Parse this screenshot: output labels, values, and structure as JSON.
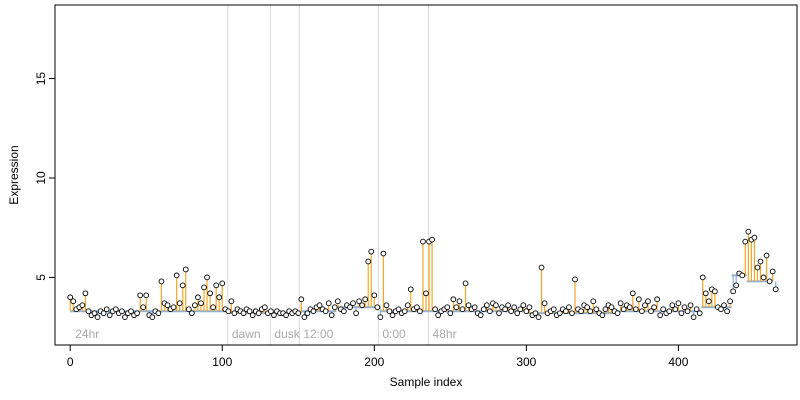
{
  "chart_data": {
    "type": "scatter",
    "title": "",
    "xlabel": "Sample index",
    "ylabel": "Expression",
    "xlim": [
      -10,
      478
    ],
    "ylim": [
      1.6,
      18.7
    ],
    "x_ticks": [
      0,
      100,
      200,
      300,
      400
    ],
    "y_ticks": [
      5,
      10,
      15
    ],
    "grid": false,
    "colors": {
      "point_stroke": "#000000",
      "point_fill": "#ffffff",
      "up_segment": "#f5a623",
      "down_segment": "#8fb0d9",
      "region_line": "#d9d9d9"
    },
    "regions": [
      {
        "label": "24hr",
        "x": 2
      },
      {
        "label": "dawn",
        "x": 105
      },
      {
        "label": "dusk",
        "x": 133
      },
      {
        "label": "12:00",
        "x": 152
      },
      {
        "label": "0:00",
        "x": 204
      },
      {
        "label": "48hr",
        "x": 237
      }
    ],
    "baseline_segments": [
      [
        0,
        60,
        3.3
      ],
      [
        60,
        105,
        3.3
      ],
      [
        105,
        133,
        3.2
      ],
      [
        133,
        152,
        3.2
      ],
      [
        152,
        175,
        3.3
      ],
      [
        175,
        204,
        3.5
      ],
      [
        204,
        237,
        3.3
      ],
      [
        237,
        300,
        3.3
      ],
      [
        300,
        360,
        3.2
      ],
      [
        360,
        415,
        3.3
      ],
      [
        415,
        435,
        3.5
      ],
      [
        435,
        445,
        5.1
      ],
      [
        445,
        460,
        4.8
      ]
    ],
    "series": [
      {
        "values": [
          [
            0,
            4.0
          ],
          [
            2,
            3.8
          ],
          [
            4,
            3.4
          ],
          [
            6,
            3.5
          ],
          [
            8,
            3.6
          ],
          [
            10,
            4.2
          ],
          [
            12,
            3.3
          ],
          [
            14,
            3.1
          ],
          [
            16,
            3.2
          ],
          [
            18,
            3.0
          ],
          [
            20,
            3.3
          ],
          [
            22,
            3.2
          ],
          [
            24,
            3.4
          ],
          [
            26,
            3.1
          ],
          [
            28,
            3.3
          ],
          [
            30,
            3.4
          ],
          [
            32,
            3.2
          ],
          [
            34,
            3.3
          ],
          [
            36,
            3.0
          ],
          [
            38,
            3.2
          ],
          [
            40,
            3.3
          ],
          [
            42,
            3.1
          ],
          [
            44,
            3.2
          ],
          [
            46,
            4.1
          ],
          [
            48,
            3.5
          ],
          [
            50,
            4.1
          ],
          [
            52,
            3.1
          ],
          [
            54,
            3.0
          ],
          [
            56,
            3.3
          ],
          [
            58,
            3.2
          ],
          [
            60,
            4.8
          ],
          [
            62,
            3.7
          ],
          [
            64,
            3.6
          ],
          [
            66,
            3.4
          ],
          [
            68,
            3.5
          ],
          [
            70,
            5.1
          ],
          [
            72,
            3.7
          ],
          [
            74,
            4.6
          ],
          [
            76,
            5.4
          ],
          [
            78,
            3.4
          ],
          [
            80,
            3.2
          ],
          [
            82,
            3.6
          ],
          [
            84,
            4.0
          ],
          [
            86,
            3.7
          ],
          [
            88,
            4.5
          ],
          [
            90,
            5.0
          ],
          [
            92,
            4.2
          ],
          [
            94,
            3.5
          ],
          [
            96,
            4.6
          ],
          [
            98,
            4.0
          ],
          [
            100,
            4.7
          ],
          [
            102,
            3.4
          ],
          [
            104,
            3.3
          ],
          [
            106,
            3.8
          ],
          [
            108,
            3.2
          ],
          [
            110,
            3.4
          ],
          [
            112,
            3.3
          ],
          [
            114,
            3.2
          ],
          [
            116,
            3.4
          ],
          [
            118,
            3.3
          ],
          [
            120,
            3.1
          ],
          [
            122,
            3.3
          ],
          [
            124,
            3.2
          ],
          [
            126,
            3.4
          ],
          [
            128,
            3.5
          ],
          [
            130,
            3.2
          ],
          [
            132,
            3.3
          ],
          [
            134,
            3.1
          ],
          [
            136,
            3.3
          ],
          [
            138,
            3.2
          ],
          [
            140,
            3.2
          ],
          [
            142,
            3.1
          ],
          [
            144,
            3.3
          ],
          [
            146,
            3.2
          ],
          [
            148,
            3.3
          ],
          [
            150,
            3.2
          ],
          [
            152,
            3.9
          ],
          [
            154,
            3.0
          ],
          [
            156,
            3.2
          ],
          [
            158,
            3.4
          ],
          [
            160,
            3.3
          ],
          [
            162,
            3.5
          ],
          [
            164,
            3.6
          ],
          [
            166,
            3.4
          ],
          [
            168,
            3.3
          ],
          [
            170,
            3.7
          ],
          [
            172,
            3.1
          ],
          [
            174,
            3.5
          ],
          [
            176,
            3.8
          ],
          [
            178,
            3.4
          ],
          [
            180,
            3.3
          ],
          [
            182,
            3.6
          ],
          [
            184,
            3.5
          ],
          [
            186,
            3.7
          ],
          [
            188,
            3.2
          ],
          [
            190,
            3.8
          ],
          [
            192,
            3.6
          ],
          [
            194,
            3.9
          ],
          [
            196,
            5.8
          ],
          [
            198,
            6.3
          ],
          [
            200,
            4.1
          ],
          [
            202,
            3.5
          ],
          [
            204,
            3.0
          ],
          [
            206,
            6.2
          ],
          [
            208,
            3.6
          ],
          [
            210,
            3.3
          ],
          [
            212,
            3.1
          ],
          [
            214,
            3.3
          ],
          [
            216,
            3.4
          ],
          [
            218,
            3.2
          ],
          [
            220,
            3.3
          ],
          [
            222,
            3.6
          ],
          [
            224,
            4.4
          ],
          [
            226,
            3.4
          ],
          [
            228,
            3.5
          ],
          [
            230,
            3.3
          ],
          [
            232,
            6.8
          ],
          [
            234,
            4.2
          ],
          [
            236,
            6.8
          ],
          [
            238,
            6.9
          ],
          [
            240,
            3.4
          ],
          [
            242,
            3.1
          ],
          [
            244,
            3.3
          ],
          [
            246,
            3.4
          ],
          [
            248,
            3.5
          ],
          [
            250,
            3.2
          ],
          [
            252,
            3.9
          ],
          [
            254,
            3.5
          ],
          [
            256,
            3.8
          ],
          [
            258,
            3.4
          ],
          [
            260,
            4.7
          ],
          [
            262,
            3.6
          ],
          [
            264,
            3.4
          ],
          [
            266,
            3.5
          ],
          [
            268,
            3.2
          ],
          [
            270,
            3.1
          ],
          [
            272,
            3.4
          ],
          [
            274,
            3.6
          ],
          [
            276,
            3.3
          ],
          [
            278,
            3.7
          ],
          [
            280,
            3.6
          ],
          [
            282,
            3.2
          ],
          [
            284,
            3.5
          ],
          [
            286,
            3.4
          ],
          [
            288,
            3.6
          ],
          [
            290,
            3.3
          ],
          [
            292,
            3.5
          ],
          [
            294,
            3.2
          ],
          [
            296,
            3.4
          ],
          [
            298,
            3.6
          ],
          [
            300,
            3.3
          ],
          [
            302,
            3.5
          ],
          [
            304,
            3.1
          ],
          [
            306,
            3.2
          ],
          [
            308,
            3.0
          ],
          [
            310,
            5.5
          ],
          [
            312,
            3.7
          ],
          [
            314,
            3.2
          ],
          [
            316,
            3.3
          ],
          [
            318,
            3.4
          ],
          [
            320,
            3.1
          ],
          [
            322,
            3.2
          ],
          [
            324,
            3.4
          ],
          [
            326,
            3.3
          ],
          [
            328,
            3.5
          ],
          [
            330,
            3.2
          ],
          [
            332,
            4.9
          ],
          [
            334,
            3.4
          ],
          [
            336,
            3.3
          ],
          [
            338,
            3.6
          ],
          [
            340,
            3.5
          ],
          [
            342,
            3.3
          ],
          [
            344,
            3.8
          ],
          [
            346,
            3.4
          ],
          [
            348,
            3.2
          ],
          [
            350,
            3.1
          ],
          [
            352,
            3.4
          ],
          [
            354,
            3.6
          ],
          [
            356,
            3.5
          ],
          [
            358,
            3.3
          ],
          [
            360,
            3.2
          ],
          [
            362,
            3.7
          ],
          [
            364,
            3.4
          ],
          [
            366,
            3.6
          ],
          [
            368,
            3.5
          ],
          [
            370,
            4.2
          ],
          [
            372,
            3.4
          ],
          [
            374,
            3.9
          ],
          [
            376,
            3.3
          ],
          [
            378,
            3.6
          ],
          [
            380,
            3.8
          ],
          [
            382,
            3.3
          ],
          [
            384,
            3.5
          ],
          [
            386,
            3.9
          ],
          [
            388,
            3.1
          ],
          [
            390,
            3.4
          ],
          [
            392,
            3.2
          ],
          [
            394,
            3.3
          ],
          [
            396,
            3.6
          ],
          [
            398,
            3.4
          ],
          [
            400,
            3.7
          ],
          [
            402,
            3.2
          ],
          [
            404,
            3.5
          ],
          [
            406,
            3.3
          ],
          [
            408,
            3.6
          ],
          [
            410,
            3.0
          ],
          [
            412,
            3.4
          ],
          [
            414,
            3.2
          ],
          [
            416,
            5.0
          ],
          [
            418,
            4.2
          ],
          [
            420,
            3.8
          ],
          [
            422,
            4.4
          ],
          [
            424,
            4.3
          ],
          [
            426,
            3.5
          ],
          [
            428,
            3.4
          ],
          [
            430,
            3.6
          ],
          [
            432,
            3.3
          ],
          [
            434,
            3.8
          ],
          [
            436,
            4.3
          ],
          [
            438,
            4.6
          ],
          [
            440,
            5.2
          ],
          [
            442,
            5.1
          ],
          [
            444,
            6.8
          ],
          [
            446,
            7.3
          ],
          [
            448,
            6.9
          ],
          [
            450,
            7.0
          ],
          [
            452,
            5.5
          ],
          [
            454,
            5.8
          ],
          [
            456,
            5.0
          ],
          [
            458,
            6.1
          ],
          [
            460,
            4.8
          ],
          [
            462,
            5.3
          ],
          [
            464,
            4.4
          ]
        ]
      }
    ]
  }
}
